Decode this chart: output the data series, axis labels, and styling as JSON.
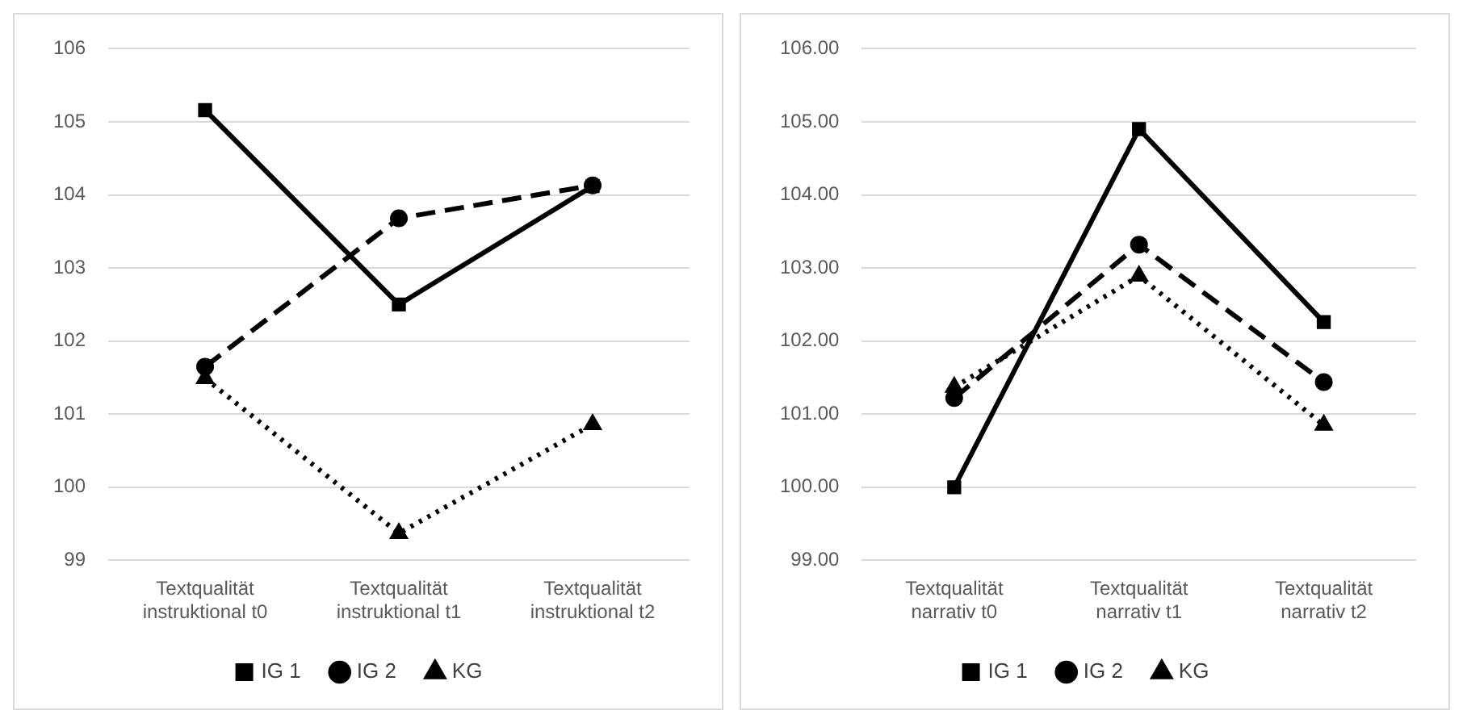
{
  "chart_data": [
    {
      "type": "line",
      "categories": [
        "Textqualität instruktional t0",
        "Textqualität instruktional t1",
        "Textqualität instruktional t2"
      ],
      "ylim": [
        99,
        106
      ],
      "yticks": [
        99,
        100,
        101,
        102,
        103,
        104,
        105,
        106
      ],
      "grid": "y",
      "legend": "bottom",
      "series": [
        {
          "name": "IG 1",
          "color": "#000000",
          "values": [
            105.16,
            102.5,
            104.12
          ],
          "marker": "square",
          "line_style": "solid"
        },
        {
          "name": "IG 2",
          "color": "#000000",
          "values": [
            101.65,
            103.68,
            104.13
          ],
          "marker": "circle",
          "line_style": "dashed"
        },
        {
          "name": "KG",
          "color": "#000000",
          "values": [
            101.49,
            99.37,
            100.86
          ],
          "marker": "triangle",
          "line_style": "dotted"
        }
      ]
    },
    {
      "type": "line",
      "categories": [
        "Textqualität narrativ t0",
        "Textqualität narrativ t1",
        "Textqualität narrativ t2"
      ],
      "ylim": [
        99,
        106
      ],
      "yticks": [
        {
          "value": 99,
          "label": "99.00"
        },
        {
          "value": 100,
          "label": "100.00"
        },
        {
          "value": 101,
          "label": "101.00"
        },
        {
          "value": 102,
          "label": "102.00"
        },
        {
          "value": 103,
          "label": "103.00"
        },
        {
          "value": 104,
          "label": "104.00"
        },
        {
          "value": 105,
          "label": "105.00"
        },
        {
          "value": 106,
          "label": "106.00"
        }
      ],
      "grid": "y",
      "legend": "bottom",
      "series": [
        {
          "name": "IG 1",
          "color": "#000000",
          "values": [
            100.0,
            104.9,
            102.26
          ],
          "marker": "square",
          "line_style": "solid"
        },
        {
          "name": "IG 2",
          "color": "#000000",
          "values": [
            101.22,
            103.32,
            101.44
          ],
          "marker": "circle",
          "line_style": "dashed"
        },
        {
          "name": "KG",
          "color": "#000000",
          "values": [
            101.37,
            102.89,
            100.85
          ],
          "marker": "triangle",
          "line_style": "dotted"
        }
      ]
    }
  ]
}
